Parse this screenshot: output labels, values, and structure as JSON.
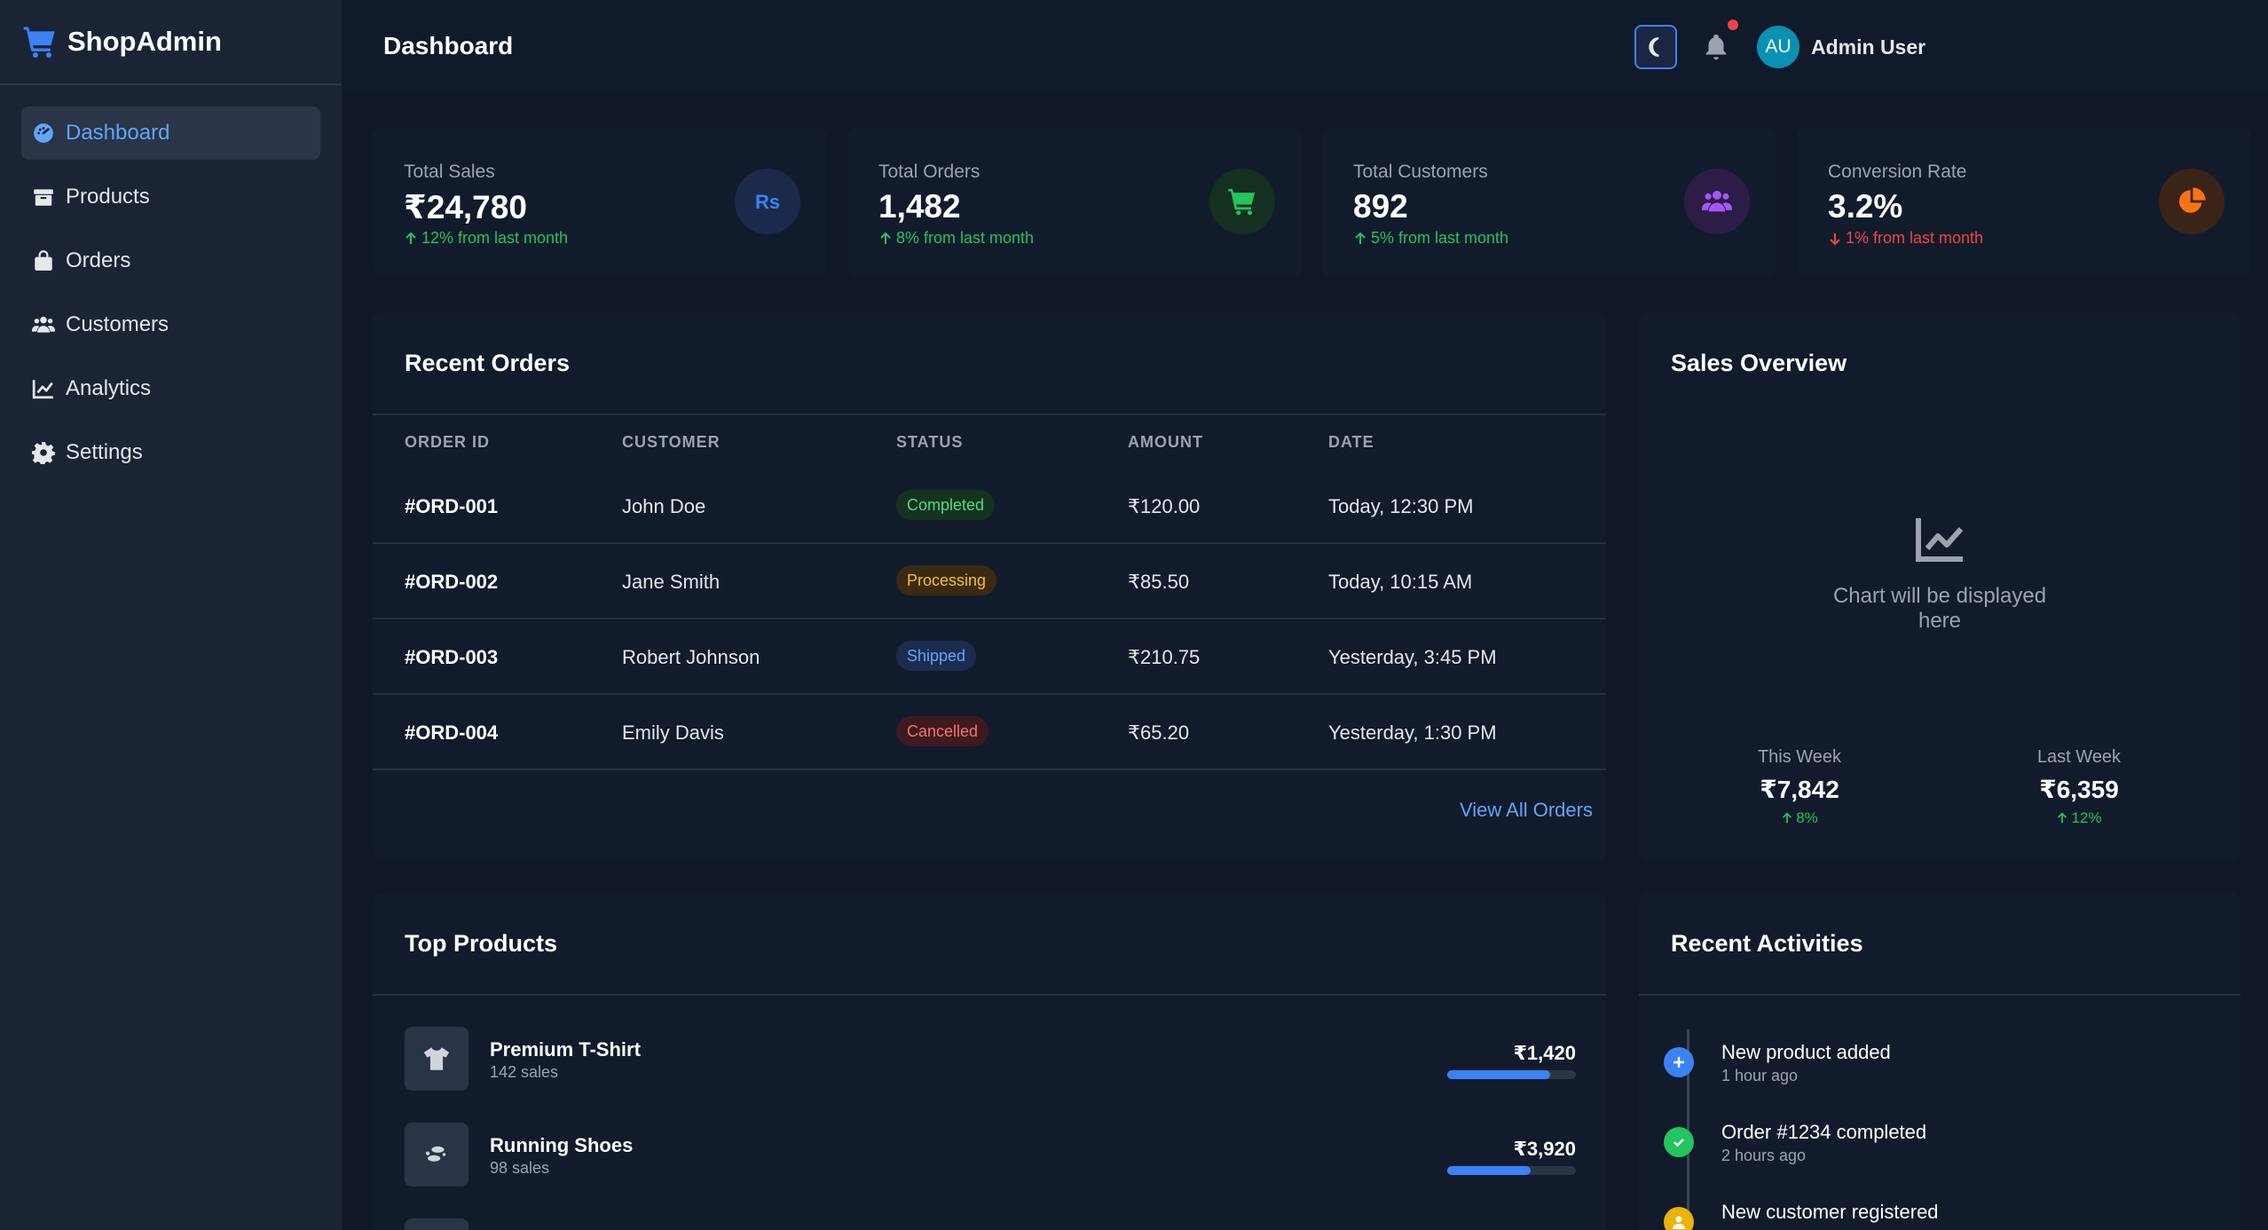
{
  "app": {
    "name": "ShopAdmin"
  },
  "sidebar": {
    "items": [
      {
        "label": "Dashboard",
        "icon": "dashboard-icon",
        "active": true
      },
      {
        "label": "Products",
        "icon": "box-icon"
      },
      {
        "label": "Orders",
        "icon": "shopping-bag-icon"
      },
      {
        "label": "Customers",
        "icon": "users-icon"
      },
      {
        "label": "Analytics",
        "icon": "chart-line-icon"
      },
      {
        "label": "Settings",
        "icon": "gear-icon"
      }
    ]
  },
  "header": {
    "title": "Dashboard",
    "avatar_initials": "AU",
    "user_name": "Admin User"
  },
  "stats": [
    {
      "label": "Total Sales",
      "value": "₹24,780",
      "delta": "12% from last month",
      "trend": "up",
      "icon": "rupee-icon"
    },
    {
      "label": "Total Orders",
      "value": "1,482",
      "delta": "8% from last month",
      "trend": "up",
      "icon": "cart-icon"
    },
    {
      "label": "Total Customers",
      "value": "892",
      "delta": "5% from last month",
      "trend": "up",
      "icon": "users-icon"
    },
    {
      "label": "Conversion Rate",
      "value": "3.2%",
      "delta": "1% from last month",
      "trend": "down",
      "icon": "pie-chart-icon"
    }
  ],
  "recent_orders": {
    "title": "Recent Orders",
    "columns": [
      "ORDER ID",
      "CUSTOMER",
      "STATUS",
      "AMOUNT",
      "DATE"
    ],
    "rows": [
      {
        "id": "#ORD-001",
        "customer": "John Doe",
        "status": "Completed",
        "amount": "₹120.00",
        "date": "Today, 12:30 PM"
      },
      {
        "id": "#ORD-002",
        "customer": "Jane Smith",
        "status": "Processing",
        "amount": "₹85.50",
        "date": "Today, 10:15 AM"
      },
      {
        "id": "#ORD-003",
        "customer": "Robert Johnson",
        "status": "Shipped",
        "amount": "₹210.75",
        "date": "Yesterday, 3:45 PM"
      },
      {
        "id": "#ORD-004",
        "customer": "Emily Davis",
        "status": "Cancelled",
        "amount": "₹65.20",
        "date": "Yesterday, 1:30 PM"
      }
    ],
    "view_all": "View All Orders"
  },
  "sales_overview": {
    "title": "Sales Overview",
    "placeholder": "Chart will be displayed here",
    "this_week": {
      "label": "This Week",
      "value": "₹7,842",
      "delta": "8%"
    },
    "last_week": {
      "label": "Last Week",
      "value": "₹6,359",
      "delta": "12%"
    }
  },
  "top_products": {
    "title": "Top Products",
    "items": [
      {
        "name": "Premium T-Shirt",
        "sales": "142 sales",
        "revenue": "₹1,420",
        "progress": 0.8
      },
      {
        "name": "Running Shoes",
        "sales": "98 sales",
        "revenue": "₹3,920",
        "progress": 0.65
      }
    ]
  },
  "activities": {
    "title": "Recent Activities",
    "items": [
      {
        "title": "New product added",
        "time": "1 hour ago",
        "color": "#3b82f6",
        "icon": "plus-icon"
      },
      {
        "title": "Order #1234 completed",
        "time": "2 hours ago",
        "color": "#22c55e",
        "icon": "check-icon"
      },
      {
        "title": "New customer registered",
        "time": "",
        "color": "#eab308",
        "icon": "user-icon"
      }
    ]
  },
  "colors": {
    "accent": "#3b82f6",
    "success": "#22c55e",
    "danger": "#ef4444"
  }
}
